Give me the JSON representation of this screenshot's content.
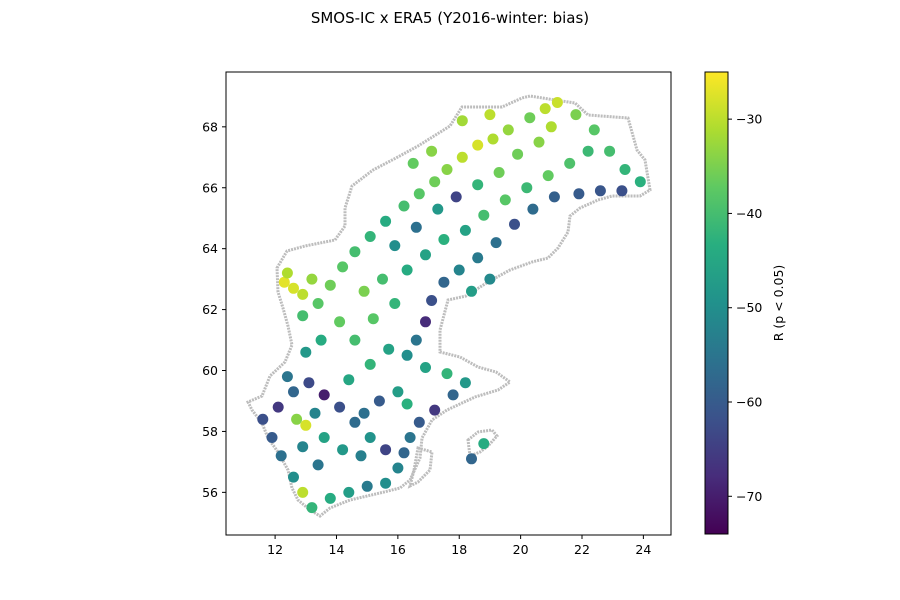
{
  "chart_data": {
    "type": "scatter",
    "title": "SMOS-IC x ERA5 (Y2016-winter: bias)",
    "xlabel": "",
    "ylabel": "",
    "xlim": [
      10.4,
      24.9
    ],
    "ylim": [
      54.6,
      69.8
    ],
    "x_ticks": [
      12,
      14,
      16,
      18,
      20,
      22,
      24
    ],
    "y_ticks": [
      56,
      58,
      60,
      62,
      64,
      66,
      68
    ],
    "grid": false,
    "colorbar": {
      "label": "R (p < 0.05)",
      "range": [
        -74,
        -25
      ],
      "ticks": [
        -30,
        -40,
        -50,
        -60,
        -70
      ],
      "colormap": "viridis",
      "tick_labels": [
        "−30",
        "−40",
        "−50",
        "−60",
        "−70"
      ]
    },
    "coastline_color": "#bdbdbd",
    "points": [
      [
        12.3,
        62.9,
        -27
      ],
      [
        12.6,
        62.7,
        -28
      ],
      [
        12.4,
        63.2,
        -31
      ],
      [
        12.9,
        62.5,
        -30
      ],
      [
        13.2,
        63.0,
        -33
      ],
      [
        13.4,
        62.2,
        -38
      ],
      [
        13.8,
        62.8,
        -36
      ],
      [
        14.2,
        63.4,
        -38
      ],
      [
        14.6,
        63.9,
        -40
      ],
      [
        15.1,
        64.4,
        -42
      ],
      [
        15.6,
        64.9,
        -44
      ],
      [
        16.2,
        65.4,
        -40
      ],
      [
        16.7,
        65.8,
        -38
      ],
      [
        17.2,
        66.2,
        -36
      ],
      [
        17.6,
        66.6,
        -34
      ],
      [
        18.1,
        67.0,
        -30
      ],
      [
        18.6,
        67.4,
        -28
      ],
      [
        19.1,
        67.6,
        -31
      ],
      [
        19.6,
        67.9,
        -33
      ],
      [
        20.3,
        68.3,
        -36
      ],
      [
        20.8,
        68.6,
        -30
      ],
      [
        21.2,
        68.8,
        -29
      ],
      [
        21.8,
        68.4,
        -35
      ],
      [
        22.4,
        67.9,
        -38
      ],
      [
        22.9,
        67.2,
        -40
      ],
      [
        23.4,
        66.6,
        -42
      ],
      [
        23.9,
        66.2,
        -43
      ],
      [
        23.3,
        65.9,
        -62
      ],
      [
        22.6,
        65.9,
        -61
      ],
      [
        21.9,
        65.8,
        -60
      ],
      [
        21.1,
        65.7,
        -59
      ],
      [
        20.4,
        65.3,
        -57
      ],
      [
        19.8,
        64.8,
        -62
      ],
      [
        19.2,
        64.2,
        -56
      ],
      [
        18.6,
        63.7,
        -54
      ],
      [
        18.0,
        63.3,
        -52
      ],
      [
        17.5,
        62.9,
        -58
      ],
      [
        17.1,
        62.3,
        -62
      ],
      [
        16.9,
        61.6,
        -68
      ],
      [
        16.6,
        61.0,
        -55
      ],
      [
        16.3,
        60.5,
        -50
      ],
      [
        16.9,
        60.1,
        -46
      ],
      [
        17.6,
        59.9,
        -42
      ],
      [
        18.2,
        59.6,
        -48
      ],
      [
        17.8,
        59.2,
        -58
      ],
      [
        17.2,
        58.7,
        -66
      ],
      [
        16.7,
        58.3,
        -60
      ],
      [
        16.4,
        57.8,
        -55
      ],
      [
        16.2,
        57.3,
        -58
      ],
      [
        16.0,
        56.8,
        -52
      ],
      [
        15.6,
        56.3,
        -50
      ],
      [
        15.0,
        56.2,
        -54
      ],
      [
        14.4,
        56.0,
        -47
      ],
      [
        13.8,
        55.8,
        -44
      ],
      [
        13.2,
        55.5,
        -42
      ],
      [
        12.9,
        56.0,
        -30
      ],
      [
        12.6,
        56.5,
        -50
      ],
      [
        12.2,
        57.2,
        -56
      ],
      [
        11.9,
        57.8,
        -60
      ],
      [
        11.6,
        58.4,
        -62
      ],
      [
        12.1,
        58.8,
        -66
      ],
      [
        12.6,
        59.3,
        -58
      ],
      [
        12.4,
        59.8,
        -55
      ],
      [
        13.1,
        59.6,
        -63
      ],
      [
        13.6,
        59.2,
        -70
      ],
      [
        14.1,
        58.8,
        -62
      ],
      [
        14.6,
        58.3,
        -57
      ],
      [
        15.1,
        57.8,
        -49
      ],
      [
        14.8,
        57.2,
        -53
      ],
      [
        14.2,
        57.4,
        -48
      ],
      [
        13.6,
        57.8,
        -46
      ],
      [
        13.0,
        58.2,
        -28
      ],
      [
        12.7,
        58.4,
        -34
      ],
      [
        13.3,
        58.6,
        -52
      ],
      [
        14.4,
        59.7,
        -45
      ],
      [
        15.1,
        60.2,
        -42
      ],
      [
        15.7,
        60.7,
        -46
      ],
      [
        14.6,
        61.0,
        -40
      ],
      [
        14.1,
        61.6,
        -37
      ],
      [
        15.2,
        61.7,
        -38
      ],
      [
        15.9,
        62.2,
        -42
      ],
      [
        14.9,
        62.6,
        -35
      ],
      [
        15.5,
        63.0,
        -40
      ],
      [
        16.3,
        63.3,
        -44
      ],
      [
        16.9,
        63.8,
        -46
      ],
      [
        17.5,
        64.3,
        -43
      ],
      [
        18.2,
        64.6,
        -46
      ],
      [
        18.8,
        65.1,
        -40
      ],
      [
        19.5,
        65.6,
        -38
      ],
      [
        20.2,
        66.0,
        -41
      ],
      [
        20.9,
        66.4,
        -37
      ],
      [
        21.6,
        66.8,
        -39
      ],
      [
        22.2,
        67.2,
        -41
      ],
      [
        19.3,
        66.5,
        -36
      ],
      [
        18.6,
        66.1,
        -42
      ],
      [
        17.9,
        65.7,
        -64
      ],
      [
        17.3,
        65.3,
        -48
      ],
      [
        16.6,
        64.7,
        -56
      ],
      [
        15.9,
        64.1,
        -50
      ],
      [
        17.1,
        67.2,
        -34
      ],
      [
        16.5,
        66.8,
        -37
      ],
      [
        18.1,
        68.2,
        -32
      ],
      [
        19.0,
        68.4,
        -30
      ],
      [
        20.6,
        67.5,
        -34
      ],
      [
        19.9,
        67.1,
        -36
      ],
      [
        21.0,
        68.0,
        -31
      ],
      [
        18.4,
        62.6,
        -47
      ],
      [
        19.0,
        63.0,
        -51
      ],
      [
        16.0,
        59.3,
        -47
      ],
      [
        15.4,
        59.0,
        -60
      ],
      [
        14.9,
        58.6,
        -56
      ],
      [
        16.3,
        58.9,
        -43
      ],
      [
        15.6,
        57.4,
        -64
      ],
      [
        13.4,
        56.9,
        -55
      ],
      [
        12.9,
        57.5,
        -52
      ],
      [
        13.0,
        60.6,
        -48
      ],
      [
        13.5,
        61.0,
        -44
      ],
      [
        12.9,
        61.8,
        -40
      ],
      [
        18.8,
        57.6,
        -44
      ],
      [
        18.4,
        57.1,
        -58
      ]
    ]
  }
}
